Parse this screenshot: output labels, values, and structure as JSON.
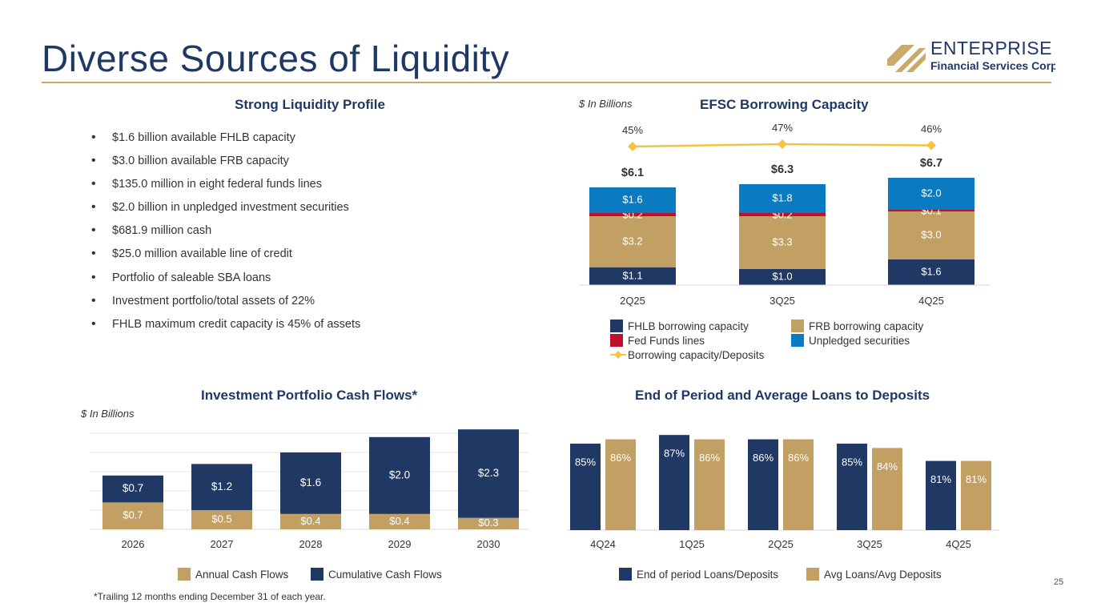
{
  "page": {
    "title": "Diverse Sources of Liquidity",
    "footnote": "*Trailing 12 months ending December 31 of each year.",
    "page_number": "25"
  },
  "logo": {
    "name": "ENTERPRISE",
    "subtitle": "Financial Services Corp",
    "colors": {
      "gold": "#c8a96a",
      "navy": "#1f3864"
    }
  },
  "liquidity_profile": {
    "title": "Strong Liquidity Profile",
    "bullets": [
      "$1.6 billion available FHLB capacity",
      "$3.0 billion available FRB capacity",
      "$135.0 million in eight federal funds lines",
      "$2.0 billion in unpledged investment securities",
      "$681.9 million cash",
      "$25.0 million available line of credit",
      "Portfolio of saleable SBA loans",
      "Investment portfolio/total assets of 22%",
      "FHLB maximum credit capacity is 45% of assets"
    ]
  },
  "colors": {
    "navy": "#1f3864",
    "gold": "#c2a063",
    "red": "#c0102e",
    "blue": "#0b7bc1",
    "line": "#f5c242",
    "text_dark": "#333333"
  },
  "chart_data": [
    {
      "id": "borrowing",
      "type": "bar",
      "stacked": true,
      "title": "EFSC Borrowing Capacity",
      "unit_note": "$ In Billions",
      "categories": [
        "2Q25",
        "3Q25",
        "4Q25"
      ],
      "totals": [
        "$6.1",
        "$6.3",
        "$6.7"
      ],
      "series": [
        {
          "name": "FHLB borrowing capacity",
          "values": [
            1.1,
            1.0,
            1.6
          ],
          "labels": [
            "$1.1",
            "$1.0",
            "$1.6"
          ],
          "color": "#1f3864"
        },
        {
          "name": "FRB borrowing capacity",
          "values": [
            3.2,
            3.3,
            3.0
          ],
          "labels": [
            "$3.2",
            "$3.3",
            "$3.0"
          ],
          "color": "#c2a063"
        },
        {
          "name": "Fed Funds lines",
          "values": [
            0.2,
            0.2,
            0.1
          ],
          "labels": [
            "$0.2",
            "$0.2",
            "$0.1"
          ],
          "color": "#c0102e"
        },
        {
          "name": "Unpledged securities",
          "values": [
            1.6,
            1.8,
            2.0
          ],
          "labels": [
            "$1.6",
            "$1.8",
            "$2.0"
          ],
          "color": "#0b7bc1"
        }
      ],
      "line_series": {
        "name": "Borrowing capacity/Deposits",
        "values": [
          45,
          47,
          46
        ],
        "labels": [
          "45%",
          "47%",
          "46%"
        ],
        "color": "#f5c242"
      },
      "legend": [
        "FHLB borrowing capacity",
        "FRB borrowing capacity",
        "Fed Funds lines",
        "Unpledged securities",
        "Borrowing capacity/Deposits"
      ]
    },
    {
      "id": "cashflows",
      "type": "bar",
      "stacked": true,
      "title": "Investment Portfolio Cash Flows*",
      "unit_note": "$ In Billions",
      "categories": [
        "2026",
        "2027",
        "2028",
        "2029",
        "2030"
      ],
      "series": [
        {
          "name": "Annual Cash Flows",
          "values": [
            0.7,
            0.5,
            0.4,
            0.4,
            0.3
          ],
          "labels": [
            "$0.7",
            "$0.5",
            "$0.4",
            "$0.4",
            "$0.3"
          ],
          "color": "#c2a063"
        },
        {
          "name": "Cumulative Cash Flows",
          "values": [
            0.7,
            1.2,
            1.6,
            2.0,
            2.3
          ],
          "labels": [
            "$0.7",
            "$1.2",
            "$1.6",
            "$2.0",
            "$2.3"
          ],
          "color": "#1f3864"
        }
      ],
      "ylim": [
        0,
        3.0
      ],
      "grid": true
    },
    {
      "id": "loans",
      "type": "bar",
      "grouped": true,
      "title": "End of Period and Average Loans to Deposits",
      "categories": [
        "4Q24",
        "1Q25",
        "2Q25",
        "3Q25",
        "4Q25"
      ],
      "series": [
        {
          "name": "End of period Loans/Deposits",
          "values": [
            85,
            87,
            86,
            85,
            81
          ],
          "labels": [
            "85%",
            "87%",
            "86%",
            "85%",
            "81%"
          ],
          "color": "#1f3864"
        },
        {
          "name": "Avg Loans/Avg Deposits",
          "values": [
            86,
            86,
            86,
            84,
            81
          ],
          "labels": [
            "86%",
            "86%",
            "86%",
            "84%",
            "81%"
          ],
          "color": "#c2a063"
        }
      ],
      "ylim": [
        65,
        88
      ]
    }
  ]
}
